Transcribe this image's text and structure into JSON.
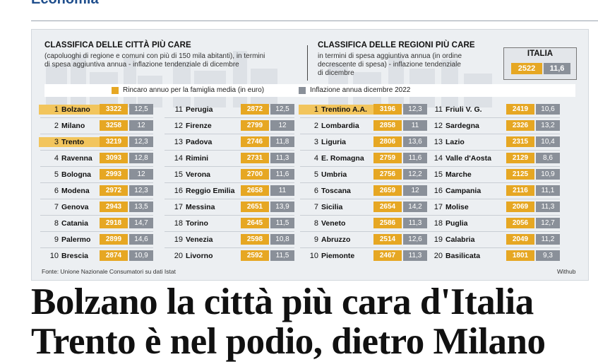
{
  "section": {
    "title": "Economia"
  },
  "left_panel": {
    "title": "CLASSIFICA DELLE CITTÀ PIÙ CARE",
    "subtitle_1": "(capoluoghi di regione e comuni con più di 150 mila abitanti), in termini",
    "subtitle_2": "di spesa aggiuntiva annua - inflazione tendenziale di dicembre"
  },
  "right_panel": {
    "title": "CLASSIFICA DELLE REGIONI PIÙ CARE",
    "subtitle_1": "in termini di spesa aggiuntiva annua (in ordine",
    "subtitle_2": "decrescente di spesa) - inflazione tendenziale",
    "subtitle_3": "di dicembre"
  },
  "italia": {
    "label": "ITALIA",
    "value": "2522",
    "inflation": "11,6"
  },
  "legend": {
    "increase": "Rincaro annuo per la famiglia media (in euro)",
    "inflation": "Inflazione annua dicembre 2022"
  },
  "colors": {
    "increase": "#e6a723",
    "inflation": "#8a9099",
    "highlight": "#f2c55d"
  },
  "cities_col1": [
    {
      "rank": "1",
      "name": "Bolzano",
      "value": "3322",
      "inflation": "12,5",
      "highlight": true
    },
    {
      "rank": "2",
      "name": "Milano",
      "value": "3258",
      "inflation": "12",
      "highlight": false
    },
    {
      "rank": "3",
      "name": "Trento",
      "value": "3219",
      "inflation": "12,3",
      "highlight": true
    },
    {
      "rank": "4",
      "name": "Ravenna",
      "value": "3093",
      "inflation": "12,8",
      "highlight": false
    },
    {
      "rank": "5",
      "name": "Bologna",
      "value": "2993",
      "inflation": "12",
      "highlight": false
    },
    {
      "rank": "6",
      "name": "Modena",
      "value": "2972",
      "inflation": "12,3",
      "highlight": false
    },
    {
      "rank": "7",
      "name": "Genova",
      "value": "2943",
      "inflation": "13,5",
      "highlight": false
    },
    {
      "rank": "8",
      "name": "Catania",
      "value": "2918",
      "inflation": "14,7",
      "highlight": false
    },
    {
      "rank": "9",
      "name": "Palermo",
      "value": "2899",
      "inflation": "14,6",
      "highlight": false
    },
    {
      "rank": "10",
      "name": "Brescia",
      "value": "2874",
      "inflation": "10,9",
      "highlight": false
    }
  ],
  "cities_col2": [
    {
      "rank": "11",
      "name": "Perugia",
      "value": "2872",
      "inflation": "12,5"
    },
    {
      "rank": "12",
      "name": "Firenze",
      "value": "2799",
      "inflation": "12"
    },
    {
      "rank": "13",
      "name": "Padova",
      "value": "2746",
      "inflation": "11,8"
    },
    {
      "rank": "14",
      "name": "Rimini",
      "value": "2731",
      "inflation": "11,3"
    },
    {
      "rank": "15",
      "name": "Verona",
      "value": "2700",
      "inflation": "11,6"
    },
    {
      "rank": "16",
      "name": "Reggio Emilia",
      "value": "2658",
      "inflation": "11"
    },
    {
      "rank": "17",
      "name": "Messina",
      "value": "2651",
      "inflation": "13,9"
    },
    {
      "rank": "18",
      "name": "Torino",
      "value": "2645",
      "inflation": "11,5"
    },
    {
      "rank": "19",
      "name": "Venezia",
      "value": "2598",
      "inflation": "10,8"
    },
    {
      "rank": "20",
      "name": "Livorno",
      "value": "2592",
      "inflation": "11,5"
    }
  ],
  "regions_col1": [
    {
      "rank": "1",
      "name": "Trentino A.A.",
      "value": "3196",
      "inflation": "12,3",
      "highlight": true
    },
    {
      "rank": "2",
      "name": "Lombardia",
      "value": "2858",
      "inflation": "11",
      "highlight": false
    },
    {
      "rank": "3",
      "name": "Liguria",
      "value": "2806",
      "inflation": "13,6",
      "highlight": false
    },
    {
      "rank": "4",
      "name": "E. Romagna",
      "value": "2759",
      "inflation": "11,6",
      "highlight": false
    },
    {
      "rank": "5",
      "name": "Umbria",
      "value": "2756",
      "inflation": "12,2",
      "highlight": false
    },
    {
      "rank": "6",
      "name": "Toscana",
      "value": "2659",
      "inflation": "12",
      "highlight": false
    },
    {
      "rank": "7",
      "name": "Sicilia",
      "value": "2654",
      "inflation": "14,2",
      "highlight": false
    },
    {
      "rank": "8",
      "name": "Veneto",
      "value": "2586",
      "inflation": "11,3",
      "highlight": false
    },
    {
      "rank": "9",
      "name": "Abruzzo",
      "value": "2514",
      "inflation": "12,6",
      "highlight": false
    },
    {
      "rank": "10",
      "name": "Piemonte",
      "value": "2467",
      "inflation": "11,3",
      "highlight": false
    }
  ],
  "regions_col2": [
    {
      "rank": "11",
      "name": "Friuli V. G.",
      "value": "2419",
      "inflation": "10,6"
    },
    {
      "rank": "12",
      "name": "Sardegna",
      "value": "2326",
      "inflation": "13,2"
    },
    {
      "rank": "13",
      "name": "Lazio",
      "value": "2315",
      "inflation": "10,4"
    },
    {
      "rank": "14",
      "name": "Valle d'Aosta",
      "value": "2129",
      "inflation": "8,6"
    },
    {
      "rank": "15",
      "name": "Marche",
      "value": "2125",
      "inflation": "10,9"
    },
    {
      "rank": "16",
      "name": "Campania",
      "value": "2116",
      "inflation": "11,1"
    },
    {
      "rank": "17",
      "name": "Molise",
      "value": "2069",
      "inflation": "11,3"
    },
    {
      "rank": "18",
      "name": "Puglia",
      "value": "2056",
      "inflation": "12,7"
    },
    {
      "rank": "19",
      "name": "Calabria",
      "value": "2049",
      "inflation": "11,2"
    },
    {
      "rank": "20",
      "name": "Basilicata",
      "value": "1801",
      "inflation": "9,3"
    }
  ],
  "source": "Fonte: Unione Nazionale Consumatori su dati Istat",
  "credit": "Withub",
  "headline": {
    "line1": "Bolzano la città più cara d'Italia",
    "line2": "Trento è nel podio, dietro Milano"
  }
}
